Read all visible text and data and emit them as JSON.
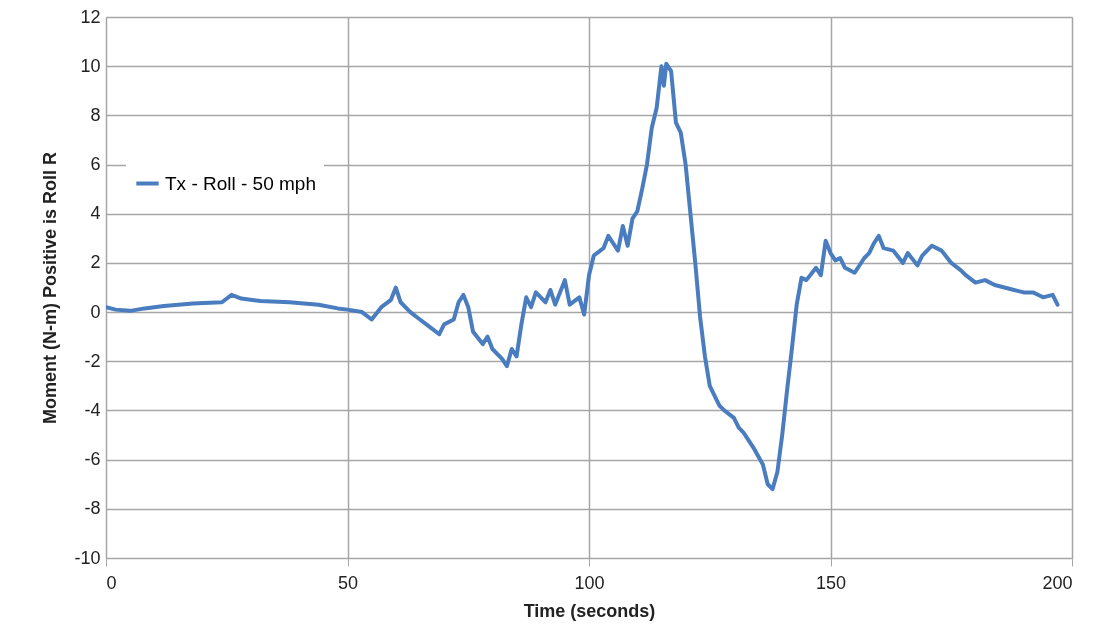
{
  "chart_data": {
    "type": "line",
    "xlabel": "Time (seconds)",
    "ylabel": "Moment (N-m) Positive is Roll R",
    "xlim": [
      0,
      200
    ],
    "xticks": [
      0,
      50,
      100,
      150,
      200
    ],
    "ylim": [
      -10,
      12
    ],
    "yticks": [
      -10,
      -8,
      -6,
      -4,
      -2,
      0,
      2,
      4,
      6,
      8,
      10,
      12
    ],
    "grid": true,
    "legend": "top left",
    "x": [
      0,
      2,
      5,
      8,
      12,
      18,
      24,
      26,
      28,
      32,
      38,
      44,
      48,
      50,
      53,
      55,
      57,
      59,
      60,
      61,
      63,
      65,
      67,
      69,
      70,
      72,
      73,
      74,
      75,
      76,
      78,
      79,
      80,
      82,
      83,
      84,
      85,
      86,
      87,
      88,
      89,
      91,
      92,
      93,
      95,
      96,
      98,
      99,
      100,
      101,
      103,
      104,
      106,
      107,
      108,
      109,
      110,
      111,
      112,
      113,
      114,
      115,
      115.5,
      116,
      117,
      118,
      119,
      120,
      121,
      122,
      123,
      124,
      125,
      127,
      128,
      130,
      131,
      132,
      134,
      136,
      137,
      138,
      139,
      140,
      141,
      142,
      143,
      144,
      145,
      147,
      148,
      149,
      150,
      151,
      152,
      153,
      155,
      157,
      158,
      159,
      160,
      161,
      163,
      165,
      166,
      168,
      169,
      171,
      173,
      175,
      177,
      178,
      180,
      182,
      184,
      186,
      188,
      190,
      192,
      194,
      196,
      197
    ],
    "series": [
      {
        "name": "Tx - Roll - 50 mph",
        "color": "#4a7dbf",
        "values": [
          0.2,
          0.1,
          0.05,
          0.15,
          0.25,
          0.35,
          0.4,
          0.7,
          0.55,
          0.45,
          0.4,
          0.3,
          0.15,
          0.1,
          0.0,
          -0.3,
          0.2,
          0.5,
          1.0,
          0.4,
          0.0,
          -0.3,
          -0.6,
          -0.9,
          -0.5,
          -0.3,
          0.4,
          0.7,
          0.2,
          -0.8,
          -1.3,
          -1.0,
          -1.5,
          -1.9,
          -2.2,
          -1.5,
          -1.8,
          -0.5,
          0.6,
          0.2,
          0.8,
          0.4,
          0.9,
          0.3,
          1.3,
          0.3,
          0.6,
          -0.1,
          1.5,
          2.3,
          2.6,
          3.1,
          2.5,
          3.5,
          2.7,
          3.8,
          4.1,
          5.0,
          6.0,
          7.5,
          8.3,
          10.0,
          9.2,
          10.1,
          9.8,
          7.7,
          7.3,
          6.0,
          4.0,
          2.0,
          -0.2,
          -1.8,
          -3.0,
          -3.8,
          -4.0,
          -4.3,
          -4.7,
          -4.9,
          -5.5,
          -6.2,
          -7.0,
          -7.2,
          -6.5,
          -5.0,
          -3.2,
          -1.5,
          0.3,
          1.4,
          1.3,
          1.8,
          1.5,
          2.9,
          2.4,
          2.1,
          2.2,
          1.8,
          1.6,
          2.2,
          2.4,
          2.8,
          3.1,
          2.6,
          2.5,
          2.0,
          2.4,
          1.9,
          2.3,
          2.7,
          2.5,
          2.0,
          1.7,
          1.5,
          1.2,
          1.3,
          1.1,
          1.0,
          0.9,
          0.8,
          0.8,
          0.6,
          0.7,
          0.3
        ]
      }
    ]
  }
}
